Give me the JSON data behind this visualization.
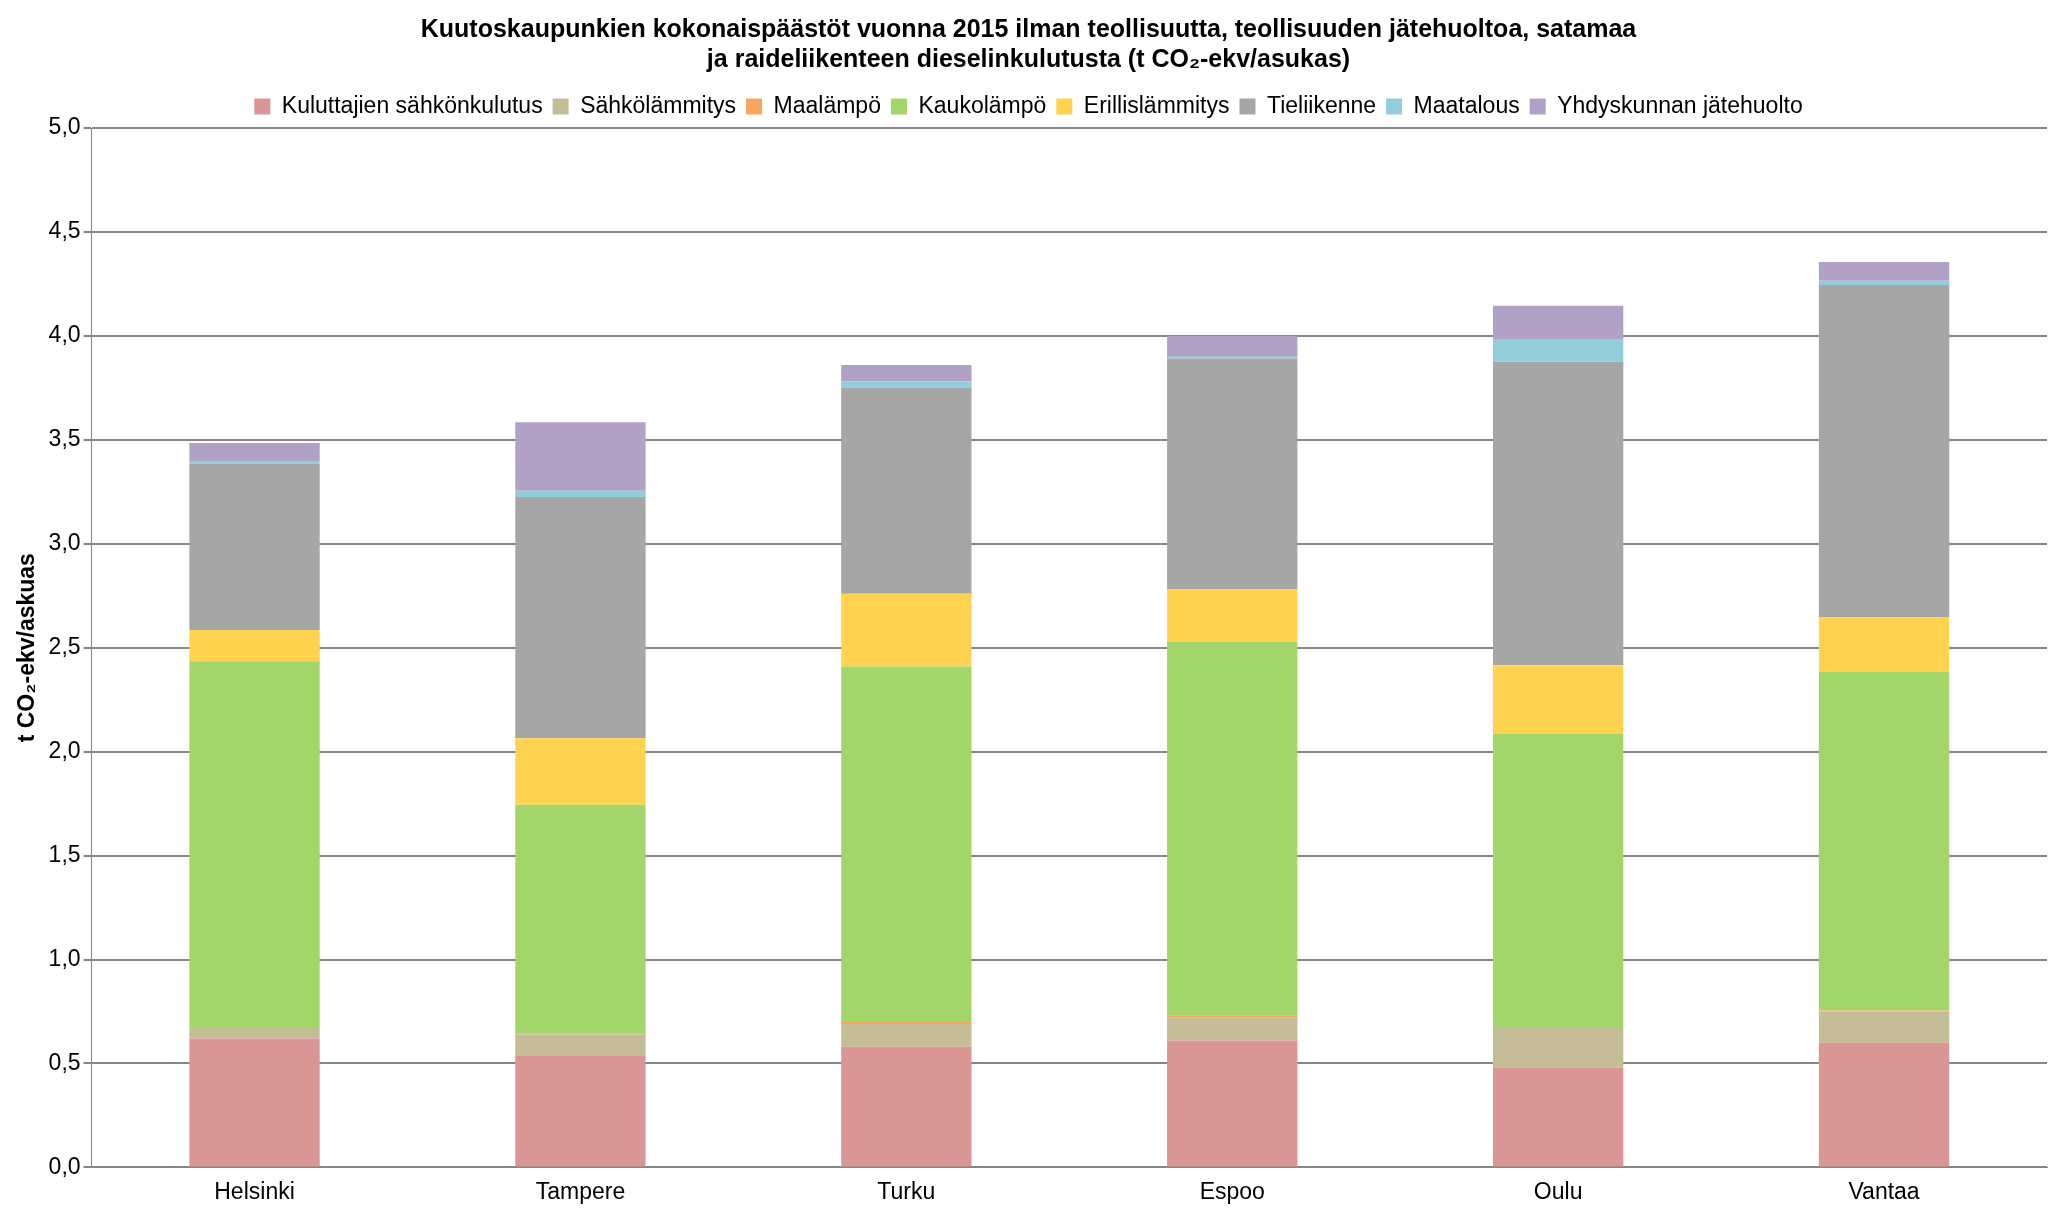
{
  "chart_data": {
    "type": "bar",
    "stacked": true,
    "title": "Kuutoskaupunkien kokonaispäästöt vuonna 2015 ilman teollisuutta, teollisuuden jätehuoltoa, satamaa ja raideliikenteen dieselinkulutusta (t CO₂-ekv/asukas)",
    "ylabel": "t CO₂-ekv/askuas",
    "categories": [
      "Helsinki",
      "Tampere",
      "Turku",
      "Espoo",
      "Oulu",
      "Vantaa"
    ],
    "series": [
      {
        "name": "Kuluttajien sähkönkulutus",
        "color": "#d99694",
        "values": [
          0.62,
          0.54,
          0.58,
          0.61,
          0.48,
          0.6
        ]
      },
      {
        "name": "Sähkölämmitys",
        "color": "#c4bd97",
        "values": [
          0.05,
          0.1,
          0.11,
          0.11,
          0.19,
          0.15
        ]
      },
      {
        "name": "Maalämpö",
        "color": "#f9a65a",
        "values": [
          0.005,
          0.005,
          0.01,
          0.01,
          0.005,
          0.005
        ]
      },
      {
        "name": "Kaukolämpö",
        "color": "#a3d66a",
        "values": [
          1.76,
          1.1,
          1.71,
          1.8,
          1.41,
          1.63
        ]
      },
      {
        "name": "Erillislämmitys",
        "color": "#ffd34f",
        "values": [
          0.15,
          0.32,
          0.35,
          0.25,
          0.33,
          0.26
        ]
      },
      {
        "name": "Tieliikenne",
        "color": "#a6a6a6",
        "values": [
          0.8,
          1.16,
          0.99,
          1.11,
          1.46,
          1.6
        ]
      },
      {
        "name": "Maatalous",
        "color": "#92cddc",
        "values": [
          0.01,
          0.03,
          0.03,
          0.01,
          0.11,
          0.02
        ]
      },
      {
        "name": "Yhdyskunnan jätehuolto",
        "color": "#b2a1c7",
        "values": [
          0.09,
          0.33,
          0.08,
          0.1,
          0.16,
          0.09
        ]
      }
    ],
    "ylim": [
      0,
      5
    ],
    "yticks": [
      {
        "value": 0,
        "label": "0,0"
      },
      {
        "value": 0.5,
        "label": "0,5"
      },
      {
        "value": 1,
        "label": "1,0"
      },
      {
        "value": 1.5,
        "label": "1,5"
      },
      {
        "value": 2,
        "label": "2,0"
      },
      {
        "value": 2.5,
        "label": "2,5"
      },
      {
        "value": 3,
        "label": "3,0"
      },
      {
        "value": 3.5,
        "label": "3,5"
      },
      {
        "value": 4,
        "label": "4,0"
      },
      {
        "value": 4.5,
        "label": "4,5"
      },
      {
        "value": 5,
        "label": "5,0"
      }
    ],
    "grid": "y",
    "legend": "top"
  }
}
